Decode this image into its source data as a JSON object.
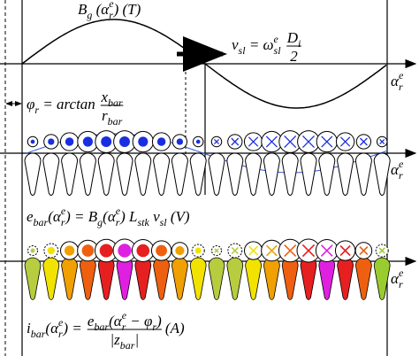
{
  "equations": {
    "bg": {
      "lhs": [
        {
          "text": "B"
        },
        {
          "sub": "g"
        },
        {
          "text": " (α"
        },
        {
          "sub": "r"
        },
        {
          "sup": "e"
        },
        {
          "text": ")   (T)"
        }
      ]
    },
    "vsl": {
      "lhs": [
        {
          "text": "v"
        },
        {
          "sub": "sl"
        },
        {
          "text": " = ω"
        },
        {
          "sub": "sl"
        },
        {
          "sup": "e"
        }
      ],
      "frac": {
        "num": [
          {
            "text": "D"
          },
          {
            "sub": "i"
          }
        ],
        "den": [
          {
            "text": "2"
          }
        ]
      }
    },
    "alpha": [
      {
        "lhs": [
          {
            "text": "α"
          },
          {
            "sub": "r"
          },
          {
            "sup": "e"
          }
        ]
      },
      {
        "lhs": [
          {
            "text": "α"
          },
          {
            "sub": "r"
          },
          {
            "sup": "e"
          }
        ]
      },
      {
        "lhs": [
          {
            "text": "α"
          },
          {
            "sub": "r"
          },
          {
            "sup": "e"
          }
        ]
      }
    ],
    "phi": {
      "lhs": [
        {
          "text": "φ"
        },
        {
          "sub": "r"
        },
        {
          "text": " = arctan"
        }
      ],
      "frac": {
        "num": [
          {
            "text": "x"
          },
          {
            "sub": "bar"
          }
        ],
        "den": [
          {
            "text": "r"
          },
          {
            "sub": "bar"
          }
        ]
      }
    },
    "ebar": {
      "lhs": [
        {
          "text": "e"
        },
        {
          "sub": "bar"
        },
        {
          "text": "(α"
        },
        {
          "sub": "r"
        },
        {
          "sup": "e"
        },
        {
          "text": ") = B"
        },
        {
          "sub": "g"
        },
        {
          "text": "(α"
        },
        {
          "sub": "r"
        },
        {
          "sup": "e"
        },
        {
          "text": ") L"
        },
        {
          "sub": "stk"
        },
        {
          "text": " v"
        },
        {
          "sub": "sl"
        },
        {
          "text": " (V)"
        }
      ]
    },
    "ibar": {
      "lhs": [
        {
          "text": "i"
        },
        {
          "sub": "bar"
        },
        {
          "text": "(α"
        },
        {
          "sub": "r"
        },
        {
          "sup": "e"
        },
        {
          "text": ") ="
        }
      ],
      "frac": {
        "num": [
          {
            "text": "e"
          },
          {
            "sub": "bar"
          },
          {
            "text": "(α"
          },
          {
            "sub": "r"
          },
          {
            "sup": "e"
          },
          {
            "text": " − φ"
          },
          {
            "sub": "r"
          },
          {
            "text": ")"
          }
        ],
        "den": [
          {
            "text": "|z"
          },
          {
            "sub": "bar"
          },
          {
            "text": "|"
          }
        ]
      },
      "rhs": [
        {
          "text": " (A)"
        }
      ]
    }
  }
}
